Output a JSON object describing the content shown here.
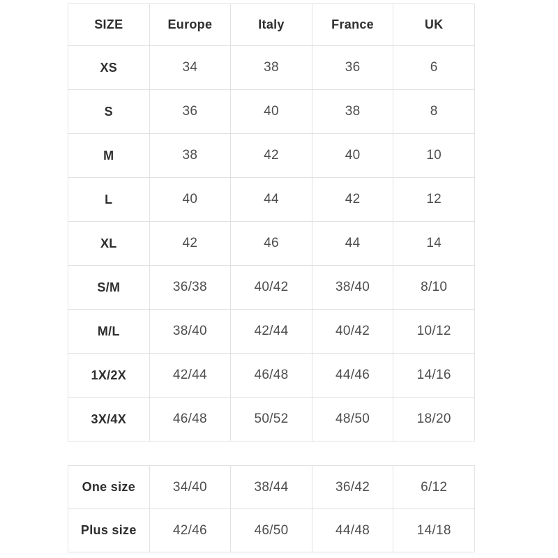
{
  "size_table": {
    "headers": [
      "SIZE",
      "Europe",
      "Italy",
      "France",
      "UK"
    ],
    "rows": [
      {
        "label": "XS",
        "values": [
          "34",
          "38",
          "36",
          "6"
        ]
      },
      {
        "label": "S",
        "values": [
          "36",
          "40",
          "38",
          "8"
        ]
      },
      {
        "label": "M",
        "values": [
          "38",
          "42",
          "40",
          "10"
        ]
      },
      {
        "label": "L",
        "values": [
          "40",
          "44",
          "42",
          "12"
        ]
      },
      {
        "label": "XL",
        "values": [
          "42",
          "46",
          "44",
          "14"
        ]
      },
      {
        "label": "S/M",
        "values": [
          "36/38",
          "40/42",
          "38/40",
          "8/10"
        ]
      },
      {
        "label": "M/L",
        "values": [
          "38/40",
          "42/44",
          "40/42",
          "10/12"
        ]
      },
      {
        "label": "1X/2X",
        "values": [
          "42/44",
          "46/48",
          "44/46",
          "14/16"
        ]
      },
      {
        "label": "3X/4X",
        "values": [
          "46/48",
          "50/52",
          "48/50",
          "18/20"
        ]
      }
    ]
  },
  "special_table": {
    "rows": [
      {
        "label": "One size",
        "values": [
          "34/40",
          "38/44",
          "36/42",
          "6/12"
        ]
      },
      {
        "label": "Plus size",
        "values": [
          "42/46",
          "46/50",
          "44/48",
          "14/18"
        ]
      }
    ]
  },
  "colors": {
    "background": "#ffffff",
    "border": "#e2e2e2",
    "heading_text": "#2e2e2e",
    "value_text": "#4e4e4e"
  }
}
